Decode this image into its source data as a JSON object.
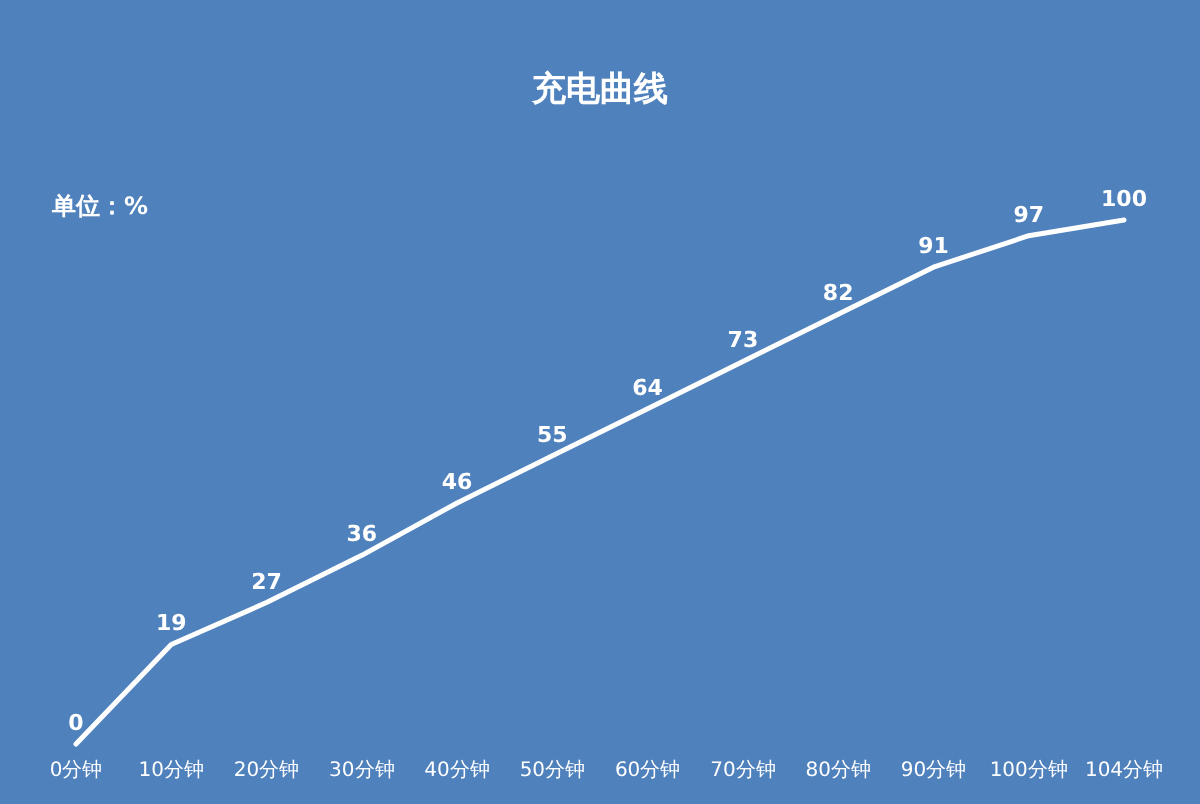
{
  "chart_data": {
    "type": "line",
    "title": "充电曲线",
    "annotations": [
      "单位：%"
    ],
    "categories": [
      "0分钟",
      "10分钟",
      "20分钟",
      "30分钟",
      "40分钟",
      "50分钟",
      "60分钟",
      "70分钟",
      "80分钟",
      "90分钟",
      "100分钟",
      "104分钟"
    ],
    "series": [
      {
        "color": "#ffffff",
        "values": [
          0,
          19,
          27,
          36,
          46,
          55,
          64,
          73,
          82,
          91,
          97,
          100
        ]
      }
    ],
    "data_labels": true,
    "grid": false,
    "marker": "none",
    "line_style": "solid",
    "tick_labels": "x"
  }
}
